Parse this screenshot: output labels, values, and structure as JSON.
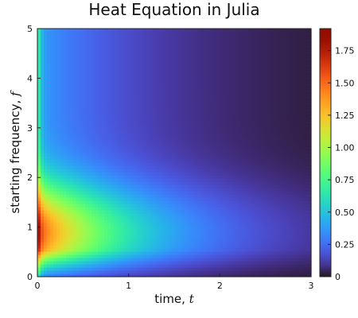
{
  "chart_data": {
    "type": "heatmap",
    "title": "Heat Equation in Julia",
    "xlabel": "time, ",
    "xlabel_var": "t",
    "ylabel": "starting frequency, ",
    "ylabel_var": "f",
    "xlim": [
      0,
      3
    ],
    "ylim": [
      0,
      5
    ],
    "x_ticks": [
      0,
      1,
      2,
      3
    ],
    "x_tick_labels": [
      "0",
      "1",
      "2",
      "3"
    ],
    "y_ticks": [
      0,
      1,
      2,
      3,
      4,
      5
    ],
    "y_tick_labels": [
      "0",
      "1",
      "2",
      "3",
      "4",
      "5"
    ],
    "colorbar": {
      "min": 0,
      "max": 1.92,
      "ticks": [
        0,
        0.25,
        0.5,
        0.75,
        1.0,
        1.25,
        1.5,
        1.75
      ],
      "tick_labels": [
        "0",
        "0.25",
        "0.50",
        "0.75",
        "1.00",
        "1.25",
        "1.50",
        "1.75"
      ],
      "colormap": "turbo"
    },
    "grid": false,
    "description_values": {
      "peak_value": 1.92,
      "peak_location": {
        "t": 0.05,
        "f": 0.9
      }
    }
  }
}
